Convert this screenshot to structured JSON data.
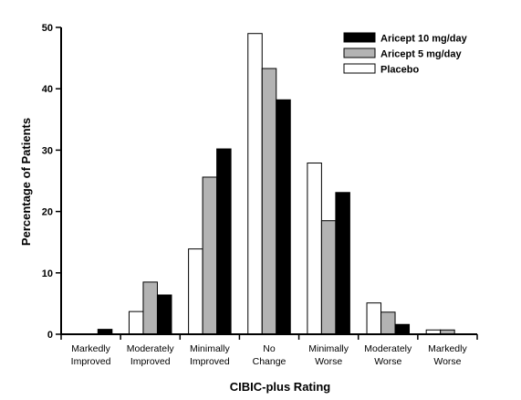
{
  "chart_data": {
    "type": "bar",
    "xlabel": "CIBIC-plus Rating",
    "ylabel": "Percentage of Patients",
    "ylim": [
      0,
      50
    ],
    "yticks": [
      0,
      10,
      20,
      30,
      40,
      50
    ],
    "grid": false,
    "legend_position": "top-right",
    "categories": [
      [
        "Markedly",
        "Improved"
      ],
      [
        "Moderately",
        "Improved"
      ],
      [
        "Minimally",
        "Improved"
      ],
      [
        "No",
        "Change"
      ],
      [
        "Minimally",
        "Worse"
      ],
      [
        "Moderately",
        "Worse"
      ],
      [
        "Markedly",
        "Worse"
      ]
    ],
    "series": [
      {
        "name": "Placebo",
        "fill": "#ffffff",
        "values": [
          0,
          3.7,
          13.9,
          49,
          27.9,
          5.1,
          0.7
        ]
      },
      {
        "name": "Aricept 5 mg/day",
        "fill": "#b3b3b3",
        "values": [
          0,
          8.5,
          25.6,
          43.3,
          18.5,
          3.6,
          0.7
        ]
      },
      {
        "name": "Aricept 10 mg/day",
        "fill": "#000000",
        "values": [
          0.8,
          6.4,
          30.2,
          38.2,
          23.1,
          1.6,
          0
        ]
      }
    ],
    "legend_order": [
      "Aricept 10 mg/day",
      "Aricept 5 mg/day",
      "Placebo"
    ]
  }
}
